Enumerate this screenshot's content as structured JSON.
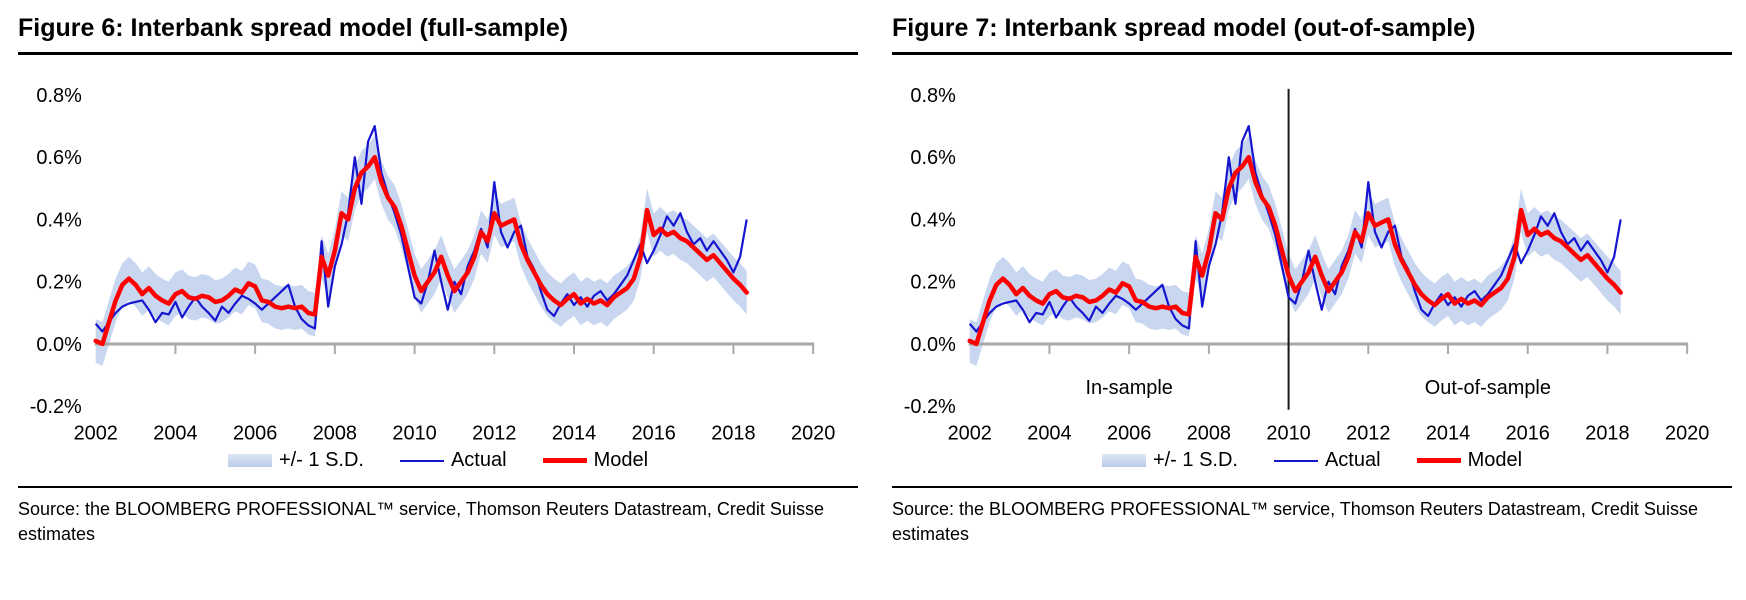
{
  "chart_data": [
    {
      "type": "line",
      "title": "Figure 6: Interbank spread model (full-sample)",
      "xlabel": "",
      "ylabel": "",
      "xlim": [
        2002,
        2020
      ],
      "ylim": [
        -0.2,
        0.8
      ],
      "x_ticks": [
        2002,
        2004,
        2006,
        2008,
        2010,
        2012,
        2014,
        2016,
        2018,
        2020
      ],
      "y_ticks": [
        -0.2,
        0.0,
        0.2,
        0.4,
        0.6,
        0.8
      ],
      "y_tick_labels": [
        "-0.2%",
        "0.0%",
        "0.2%",
        "0.4%",
        "0.6%",
        "0.8%"
      ],
      "grid": false,
      "legend_position": "bottom",
      "legend_labels": [
        "+/- 1 S.D.",
        "Actual",
        "Model"
      ],
      "colors": {
        "band": "#c8d6ef",
        "actual": "#1515d0",
        "model": "#fe0000",
        "axis": "#a8a8a8"
      },
      "band_halfwidth": 0.07,
      "x_start": 2002.0,
      "x_step": 0.1666667,
      "series": [
        {
          "name": "Actual",
          "values": [
            0.065,
            0.04,
            0.07,
            0.1,
            0.12,
            0.13,
            0.135,
            0.14,
            0.11,
            0.07,
            0.1,
            0.095,
            0.135,
            0.085,
            0.12,
            0.15,
            0.12,
            0.1,
            0.075,
            0.12,
            0.1,
            0.13,
            0.155,
            0.145,
            0.13,
            0.11,
            0.13,
            0.15,
            0.17,
            0.19,
            0.12,
            0.08,
            0.06,
            0.05,
            0.33,
            0.12,
            0.25,
            0.32,
            0.42,
            0.6,
            0.45,
            0.65,
            0.7,
            0.55,
            0.48,
            0.42,
            0.35,
            0.25,
            0.15,
            0.13,
            0.2,
            0.3,
            0.2,
            0.11,
            0.2,
            0.16,
            0.25,
            0.3,
            0.37,
            0.31,
            0.52,
            0.36,
            0.31,
            0.36,
            0.38,
            0.28,
            0.24,
            0.17,
            0.11,
            0.09,
            0.13,
            0.16,
            0.125,
            0.15,
            0.12,
            0.155,
            0.17,
            0.14,
            0.16,
            0.19,
            0.22,
            0.27,
            0.32,
            0.26,
            0.3,
            0.35,
            0.41,
            0.38,
            0.42,
            0.36,
            0.32,
            0.34,
            0.3,
            0.33,
            0.3,
            0.27,
            0.23,
            0.28,
            0.4
          ]
        },
        {
          "name": "Model",
          "values": [
            0.01,
            0.0,
            0.07,
            0.14,
            0.19,
            0.21,
            0.19,
            0.16,
            0.18,
            0.155,
            0.14,
            0.13,
            0.16,
            0.17,
            0.15,
            0.145,
            0.155,
            0.15,
            0.135,
            0.14,
            0.155,
            0.175,
            0.165,
            0.195,
            0.185,
            0.14,
            0.135,
            0.12,
            0.115,
            0.12,
            0.115,
            0.12,
            0.1,
            0.095,
            0.28,
            0.22,
            0.3,
            0.42,
            0.4,
            0.5,
            0.55,
            0.57,
            0.6,
            0.52,
            0.47,
            0.44,
            0.38,
            0.3,
            0.22,
            0.17,
            0.2,
            0.23,
            0.28,
            0.22,
            0.17,
            0.2,
            0.23,
            0.28,
            0.36,
            0.33,
            0.42,
            0.38,
            0.39,
            0.4,
            0.32,
            0.27,
            0.23,
            0.19,
            0.16,
            0.14,
            0.125,
            0.145,
            0.16,
            0.13,
            0.145,
            0.13,
            0.14,
            0.125,
            0.15,
            0.165,
            0.18,
            0.21,
            0.28,
            0.43,
            0.35,
            0.37,
            0.35,
            0.36,
            0.34,
            0.33,
            0.31,
            0.29,
            0.27,
            0.285,
            0.26,
            0.235,
            0.21,
            0.19,
            0.165
          ]
        }
      ]
    },
    {
      "type": "line",
      "title": "Figure 7: Interbank spread model (out-of-sample)",
      "xlabel": "",
      "ylabel": "",
      "xlim": [
        2002,
        2020
      ],
      "ylim": [
        -0.2,
        0.8
      ],
      "x_ticks": [
        2002,
        2004,
        2006,
        2008,
        2010,
        2012,
        2014,
        2016,
        2018,
        2020
      ],
      "y_ticks": [
        -0.2,
        0.0,
        0.2,
        0.4,
        0.6,
        0.8
      ],
      "y_tick_labels": [
        "-0.2%",
        "0.0%",
        "0.2%",
        "0.4%",
        "0.6%",
        "0.8%"
      ],
      "grid": false,
      "legend_position": "bottom",
      "legend_labels": [
        "+/- 1 S.D.",
        "Actual",
        "Model"
      ],
      "colors": {
        "band": "#c8d6ef",
        "actual": "#1515d0",
        "model": "#fe0000",
        "axis": "#a8a8a8"
      },
      "band_halfwidth": 0.07,
      "divider_x": 2010,
      "in_sample_label": "In-sample",
      "out_sample_label": "Out-of-sample",
      "x_start": 2002.0,
      "x_step": 0.1666667,
      "series": [
        {
          "name": "Actual",
          "values": [
            0.065,
            0.04,
            0.07,
            0.1,
            0.12,
            0.13,
            0.135,
            0.14,
            0.11,
            0.07,
            0.1,
            0.095,
            0.135,
            0.085,
            0.12,
            0.15,
            0.12,
            0.1,
            0.075,
            0.12,
            0.1,
            0.13,
            0.155,
            0.145,
            0.13,
            0.11,
            0.13,
            0.15,
            0.17,
            0.19,
            0.12,
            0.08,
            0.06,
            0.05,
            0.33,
            0.12,
            0.25,
            0.32,
            0.42,
            0.6,
            0.45,
            0.65,
            0.7,
            0.55,
            0.48,
            0.42,
            0.35,
            0.25,
            0.15,
            0.13,
            0.2,
            0.3,
            0.2,
            0.11,
            0.2,
            0.16,
            0.25,
            0.3,
            0.37,
            0.31,
            0.52,
            0.36,
            0.31,
            0.36,
            0.38,
            0.28,
            0.24,
            0.17,
            0.11,
            0.09,
            0.13,
            0.16,
            0.125,
            0.15,
            0.12,
            0.155,
            0.17,
            0.14,
            0.16,
            0.19,
            0.22,
            0.27,
            0.32,
            0.26,
            0.3,
            0.35,
            0.41,
            0.38,
            0.42,
            0.36,
            0.32,
            0.34,
            0.3,
            0.33,
            0.3,
            0.27,
            0.23,
            0.28,
            0.4
          ]
        },
        {
          "name": "Model",
          "values": [
            0.01,
            0.0,
            0.07,
            0.14,
            0.19,
            0.21,
            0.19,
            0.16,
            0.18,
            0.155,
            0.14,
            0.13,
            0.16,
            0.17,
            0.15,
            0.145,
            0.155,
            0.15,
            0.135,
            0.14,
            0.155,
            0.175,
            0.165,
            0.195,
            0.185,
            0.14,
            0.135,
            0.12,
            0.115,
            0.12,
            0.115,
            0.12,
            0.1,
            0.095,
            0.28,
            0.22,
            0.3,
            0.42,
            0.4,
            0.5,
            0.55,
            0.57,
            0.6,
            0.52,
            0.47,
            0.44,
            0.38,
            0.3,
            0.22,
            0.17,
            0.2,
            0.23,
            0.28,
            0.22,
            0.17,
            0.2,
            0.23,
            0.28,
            0.36,
            0.33,
            0.42,
            0.38,
            0.39,
            0.4,
            0.32,
            0.27,
            0.23,
            0.19,
            0.16,
            0.14,
            0.125,
            0.145,
            0.16,
            0.13,
            0.145,
            0.13,
            0.14,
            0.125,
            0.15,
            0.165,
            0.18,
            0.21,
            0.28,
            0.43,
            0.35,
            0.37,
            0.35,
            0.36,
            0.34,
            0.33,
            0.31,
            0.29,
            0.27,
            0.285,
            0.26,
            0.235,
            0.21,
            0.19,
            0.165
          ]
        }
      ]
    }
  ],
  "sources": {
    "left": "Source: the BLOOMBERG PROFESSIONAL™ service, Thomson Reuters Datastream, Credit Suisse estimates",
    "right": "Source: the BLOOMBERG PROFESSIONAL™ service, Thomson Reuters Datastream, Credit Suisse estimates"
  }
}
